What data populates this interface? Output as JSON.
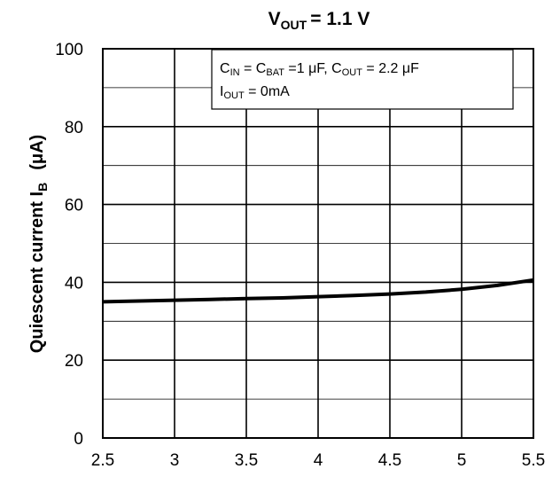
{
  "chart_data": {
    "type": "line",
    "title": {
      "main": "V",
      "sub": "OUT",
      "rest": "= 1.1 V"
    },
    "ylabel": {
      "text": "Quiescent current   I",
      "sub": "B",
      "unit": "(μA)"
    },
    "xlabel": "",
    "xlim": [
      2.5,
      5.5
    ],
    "ylim": [
      0,
      100
    ],
    "x_ticks": [
      "2.5",
      "3",
      "3.5",
      "4",
      "4.5",
      "5",
      "5.5"
    ],
    "y_ticks": [
      "0",
      "20",
      "40",
      "60",
      "80",
      "100"
    ],
    "grid": true,
    "annotation": {
      "line1": [
        {
          "t": "C"
        },
        {
          "t": "IN",
          "sub": true
        },
        {
          "t": " = C"
        },
        {
          "t": "BAT",
          "sub": true
        },
        {
          "t": " =1 μF, C"
        },
        {
          "t": "OUT",
          "sub": true
        },
        {
          "t": " = 2.2 μF"
        }
      ],
      "line2": [
        {
          "t": "I"
        },
        {
          "t": "OUT",
          "sub": true
        },
        {
          "t": " = 0mA"
        }
      ]
    },
    "series": [
      {
        "color": "#000000",
        "x": [
          2.5,
          2.75,
          3.0,
          3.25,
          3.5,
          3.75,
          4.0,
          4.25,
          4.5,
          4.75,
          5.0,
          5.25,
          5.5
        ],
        "y": [
          35.0,
          35.2,
          35.4,
          35.6,
          35.8,
          36.0,
          36.3,
          36.6,
          37.0,
          37.5,
          38.2,
          39.2,
          40.6
        ]
      }
    ]
  }
}
